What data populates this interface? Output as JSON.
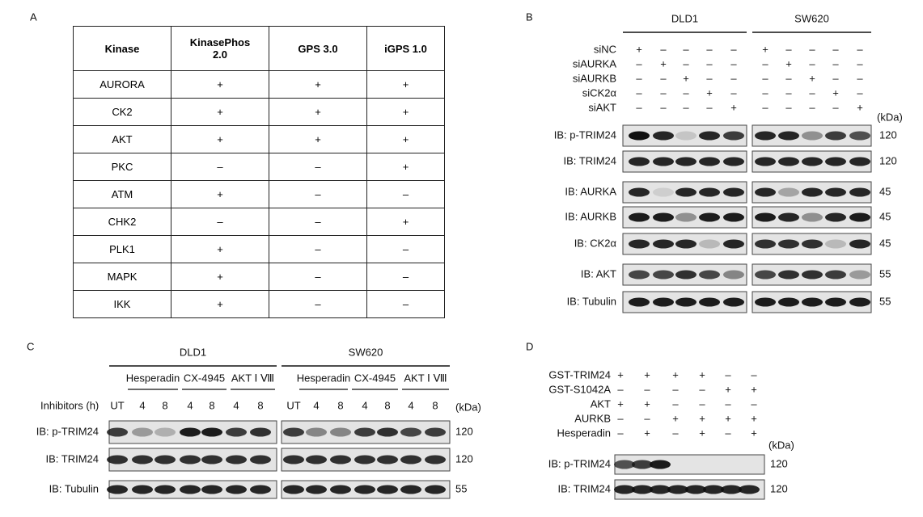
{
  "panel_a": {
    "label": "A",
    "table": {
      "header": [
        "Kinase",
        "KinasePhos 2.0",
        "GPS 3.0",
        "iGPS 1.0"
      ],
      "rows": [
        [
          "AURORA",
          "+",
          "+",
          "+"
        ],
        [
          "CK2",
          "+",
          "+",
          "+"
        ],
        [
          "AKT",
          "+",
          "+",
          "+"
        ],
        [
          "PKC",
          "–",
          "–",
          "+"
        ],
        [
          "ATM",
          "+",
          "–",
          "–"
        ],
        [
          "CHK2",
          "–",
          "–",
          "+"
        ],
        [
          "PLK1",
          "+",
          "–",
          "–"
        ],
        [
          "MAPK",
          "+",
          "–",
          "–"
        ],
        [
          "IKK",
          "+",
          "–",
          "–"
        ]
      ]
    }
  },
  "panel_b": {
    "label": "B",
    "cell_lines": [
      "DLD1",
      "SW620"
    ],
    "conditions": [
      {
        "name": "siNC",
        "signs": [
          "+",
          "–",
          "–",
          "–",
          "–",
          "+",
          "–",
          "–",
          "–",
          "–"
        ]
      },
      {
        "name": "siAURKA",
        "signs": [
          "–",
          "+",
          "–",
          "–",
          "–",
          "–",
          "+",
          "–",
          "–",
          "–"
        ]
      },
      {
        "name": "siAURKB",
        "signs": [
          "–",
          "–",
          "+",
          "–",
          "–",
          "–",
          "–",
          "+",
          "–",
          "–"
        ]
      },
      {
        "name": "siCK2α",
        "signs": [
          "–",
          "–",
          "–",
          "+",
          "–",
          "–",
          "–",
          "–",
          "+",
          "–"
        ]
      },
      {
        "name": "siAKT",
        "signs": [
          "–",
          "–",
          "–",
          "–",
          "+",
          "–",
          "–",
          "–",
          "–",
          "+"
        ]
      }
    ],
    "kda_unit": "(kDa)",
    "blots": [
      {
        "label": "IB: p-TRIM24",
        "kda": 120
      },
      {
        "label": "IB: TRIM24",
        "kda": 120
      },
      {
        "label": "IB: AURKA",
        "kda": 45
      },
      {
        "label": "IB: AURKB",
        "kda": 45
      },
      {
        "label": "IB: CK2α",
        "kda": 45
      },
      {
        "label": "IB: AKT",
        "kda": 55
      },
      {
        "label": "IB: Tubulin",
        "kda": 55
      }
    ]
  },
  "panel_c": {
    "label": "C",
    "cell_lines": [
      "DLD1",
      "SW620"
    ],
    "inhibitors": [
      "Hesperadin",
      "CX-4945",
      "AKT Ⅰ Ⅷ"
    ],
    "time_label": "Inhibitors (h)",
    "lanes": [
      "UT",
      "4",
      "8",
      "4",
      "8",
      "4",
      "8"
    ],
    "kda_unit": "(kDa)",
    "blots": [
      {
        "label": "IB: p-TRIM24",
        "kda": 120
      },
      {
        "label": "IB: TRIM24",
        "kda": 120
      },
      {
        "label": "IB: Tubulin",
        "kda": 55
      }
    ]
  },
  "panel_d": {
    "label": "D",
    "conditions": [
      {
        "name": "GST-TRIM24",
        "signs": [
          "+",
          "+",
          "+",
          "+",
          "–",
          "–"
        ]
      },
      {
        "name": "GST-S1042A",
        "signs": [
          "–",
          "–",
          "–",
          "–",
          "+",
          "+"
        ]
      },
      {
        "name": "AKT",
        "signs": [
          "+",
          "+",
          "–",
          "–",
          "–",
          "–"
        ]
      },
      {
        "name": "AURKB",
        "signs": [
          "–",
          "–",
          "+",
          "+",
          "+",
          "+"
        ]
      },
      {
        "name": "Hesperadin",
        "signs": [
          "–",
          "+",
          "–",
          "+",
          "–",
          "+"
        ]
      }
    ],
    "kda_unit": "(kDa)",
    "blots": [
      {
        "label": "IB: p-TRIM24",
        "kda": 120
      },
      {
        "label": "IB: TRIM24",
        "kda": 120
      }
    ]
  }
}
